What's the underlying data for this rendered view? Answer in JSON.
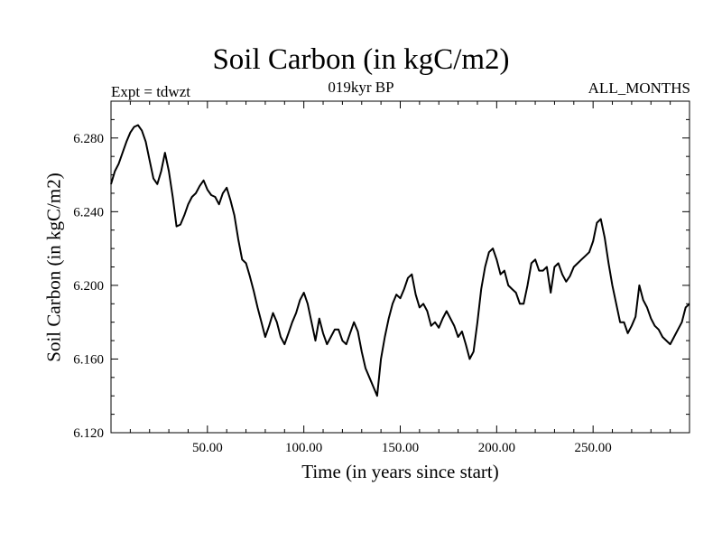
{
  "chart_data": {
    "type": "line",
    "title": "Soil Carbon (in kgC/m2)",
    "subtitle": "019kyr BP",
    "annotation_left": "Expt = tdwzt",
    "annotation_right": "ALL_MONTHS",
    "xlabel": "Time (in years since start)",
    "ylabel": "Soil Carbon (in kgC/m2)",
    "xlim": [
      0,
      300
    ],
    "ylim": [
      6.12,
      6.3
    ],
    "xticks": [
      50,
      100,
      150,
      200,
      250
    ],
    "xtick_labels": [
      "50.00",
      "100.00",
      "150.00",
      "200.00",
      "250.00"
    ],
    "yticks": [
      6.12,
      6.16,
      6.2,
      6.24,
      6.28
    ],
    "ytick_labels": [
      "6.120",
      "6.160",
      "6.200",
      "6.240",
      "6.280"
    ],
    "grid": false,
    "series": [
      {
        "color": "#000000",
        "x": [
          0,
          2,
          4,
          6,
          8,
          10,
          12,
          14,
          16,
          18,
          20,
          22,
          24,
          26,
          28,
          30,
          32,
          34,
          36,
          38,
          40,
          42,
          44,
          46,
          48,
          50,
          52,
          54,
          56,
          58,
          60,
          62,
          64,
          66,
          68,
          70,
          72,
          74,
          76,
          78,
          80,
          82,
          84,
          86,
          88,
          90,
          92,
          94,
          96,
          98,
          100,
          102,
          104,
          106,
          108,
          110,
          112,
          114,
          116,
          118,
          120,
          122,
          124,
          126,
          128,
          130,
          132,
          134,
          136,
          138,
          140,
          142,
          144,
          146,
          148,
          150,
          152,
          154,
          156,
          158,
          160,
          162,
          164,
          166,
          168,
          170,
          172,
          174,
          176,
          178,
          180,
          182,
          184,
          186,
          188,
          190,
          192,
          194,
          196,
          198,
          200,
          202,
          204,
          206,
          208,
          210,
          212,
          214,
          216,
          218,
          220,
          222,
          224,
          226,
          228,
          230,
          232,
          234,
          236,
          238,
          240,
          242,
          244,
          246,
          248,
          250,
          252,
          254,
          256,
          258,
          260,
          262,
          264,
          266,
          268,
          270,
          272,
          274,
          276,
          278,
          280,
          282,
          284,
          286,
          288,
          290,
          292,
          294,
          296,
          298,
          300
        ],
        "y": [
          6.255,
          6.262,
          6.266,
          6.272,
          6.278,
          6.283,
          6.286,
          6.287,
          6.284,
          6.278,
          6.268,
          6.258,
          6.255,
          6.262,
          6.272,
          6.262,
          6.248,
          6.232,
          6.233,
          6.238,
          6.244,
          6.248,
          6.25,
          6.254,
          6.257,
          6.252,
          6.249,
          6.248,
          6.244,
          6.25,
          6.253,
          6.246,
          6.238,
          6.225,
          6.214,
          6.212,
          6.205,
          6.197,
          6.188,
          6.18,
          6.172,
          6.178,
          6.185,
          6.18,
          6.172,
          6.168,
          6.174,
          6.18,
          6.185,
          6.192,
          6.196,
          6.19,
          6.18,
          6.17,
          6.182,
          6.174,
          6.168,
          6.172,
          6.176,
          6.176,
          6.17,
          6.168,
          6.174,
          6.18,
          6.175,
          6.164,
          6.155,
          6.15,
          6.145,
          6.14,
          6.16,
          6.172,
          6.182,
          6.19,
          6.195,
          6.193,
          6.198,
          6.204,
          6.206,
          6.195,
          6.188,
          6.19,
          6.186,
          6.178,
          6.18,
          6.177,
          6.182,
          6.186,
          6.182,
          6.178,
          6.172,
          6.175,
          6.168,
          6.16,
          6.164,
          6.18,
          6.198,
          6.21,
          6.218,
          6.22,
          6.214,
          6.206,
          6.208,
          6.2,
          6.198,
          6.196,
          6.19,
          6.19,
          6.2,
          6.212,
          6.214,
          6.208,
          6.208,
          6.21,
          6.196,
          6.21,
          6.212,
          6.206,
          6.202,
          6.205,
          6.21,
          6.212,
          6.214,
          6.216,
          6.218,
          6.224,
          6.234,
          6.236,
          6.226,
          6.212,
          6.2,
          6.19,
          6.18,
          6.18,
          6.174,
          6.178,
          6.183,
          6.2,
          6.192,
          6.188,
          6.182,
          6.178,
          6.176,
          6.172,
          6.17,
          6.168,
          6.172,
          6.176,
          6.18,
          6.188,
          6.19
        ]
      }
    ]
  }
}
